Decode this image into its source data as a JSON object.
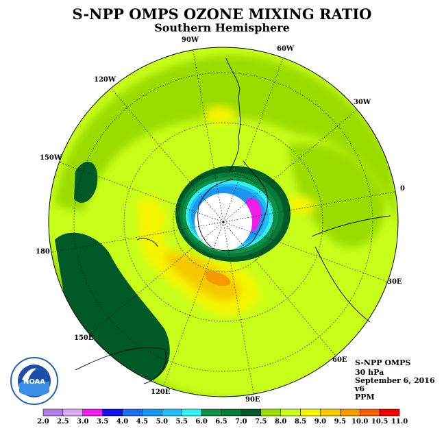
{
  "title": "S-NPP OMPS OZONE MIXING RATIO",
  "subtitle": "Southern Hemisphere",
  "longitude_labels": [
    "90W",
    "60W",
    "30W",
    "0",
    "30E",
    "60E",
    "90E",
    "120E",
    "150E",
    "180",
    "150W",
    "120W"
  ],
  "info": {
    "instrument": "S-NPP OMPS",
    "level": "30 hPa",
    "date": "September 6, 2016",
    "version": "v6",
    "units": "PPM"
  },
  "logo_text": "NOAA",
  "colorbar": {
    "ticks": [
      "2.0",
      "2.5",
      "3.0",
      "3.5",
      "4.0",
      "4.5",
      "5.0",
      "5.5",
      "6.0",
      "6.5",
      "7.0",
      "7.5",
      "8.0",
      "8.5",
      "9.0",
      "9.5",
      "10.0",
      "10.5",
      "11.0"
    ],
    "colors": [
      "#b07ee6",
      "#d6a8f2",
      "#ee1ee6",
      "#1010e8",
      "#1c6ff0",
      "#1a96f0",
      "#22bdf3",
      "#30f0f0",
      "#109044",
      "#087a3a",
      "#005a28",
      "#9bdc00",
      "#c8ff1a",
      "#f5f500",
      "#f5c800",
      "#f59a00",
      "#f56000",
      "#f50000",
      "#8c5a3c"
    ]
  }
}
